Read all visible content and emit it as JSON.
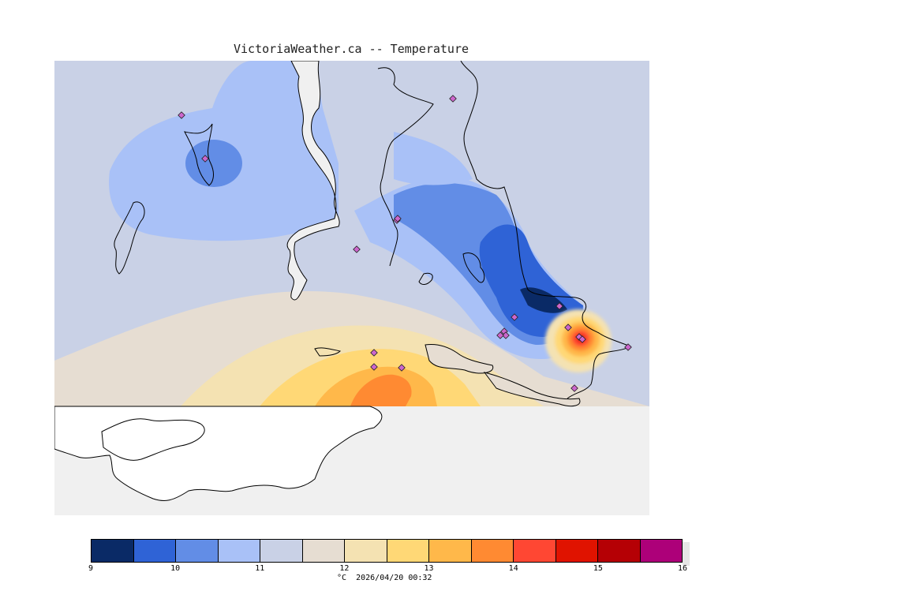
{
  "header": {
    "title": "VictoriaWeather.ca -- Temperature"
  },
  "map": {
    "variable": "Temperature",
    "colors": {
      "water": "#f0f0f0",
      "coastline": "#000000",
      "station_marker": "#cc66cc"
    },
    "station_count": 19
  },
  "legend": {
    "min": 9,
    "max": 16,
    "step": 0.5,
    "colors": [
      "#0a2a66",
      "#2f63d6",
      "#628de6",
      "#a9c1f7",
      "#c9d1e6",
      "#e6ddd2",
      "#f4e2b2",
      "#ffd876",
      "#ffb84a",
      "#ff8a32",
      "#ff4733",
      "#e01300",
      "#b50005",
      "#ad0079"
    ],
    "tick_labels": [
      "9",
      "10",
      "11",
      "12",
      "13",
      "14",
      "15",
      "16"
    ],
    "unit": "°C",
    "timestamp": "2026/04/20 00:32"
  }
}
